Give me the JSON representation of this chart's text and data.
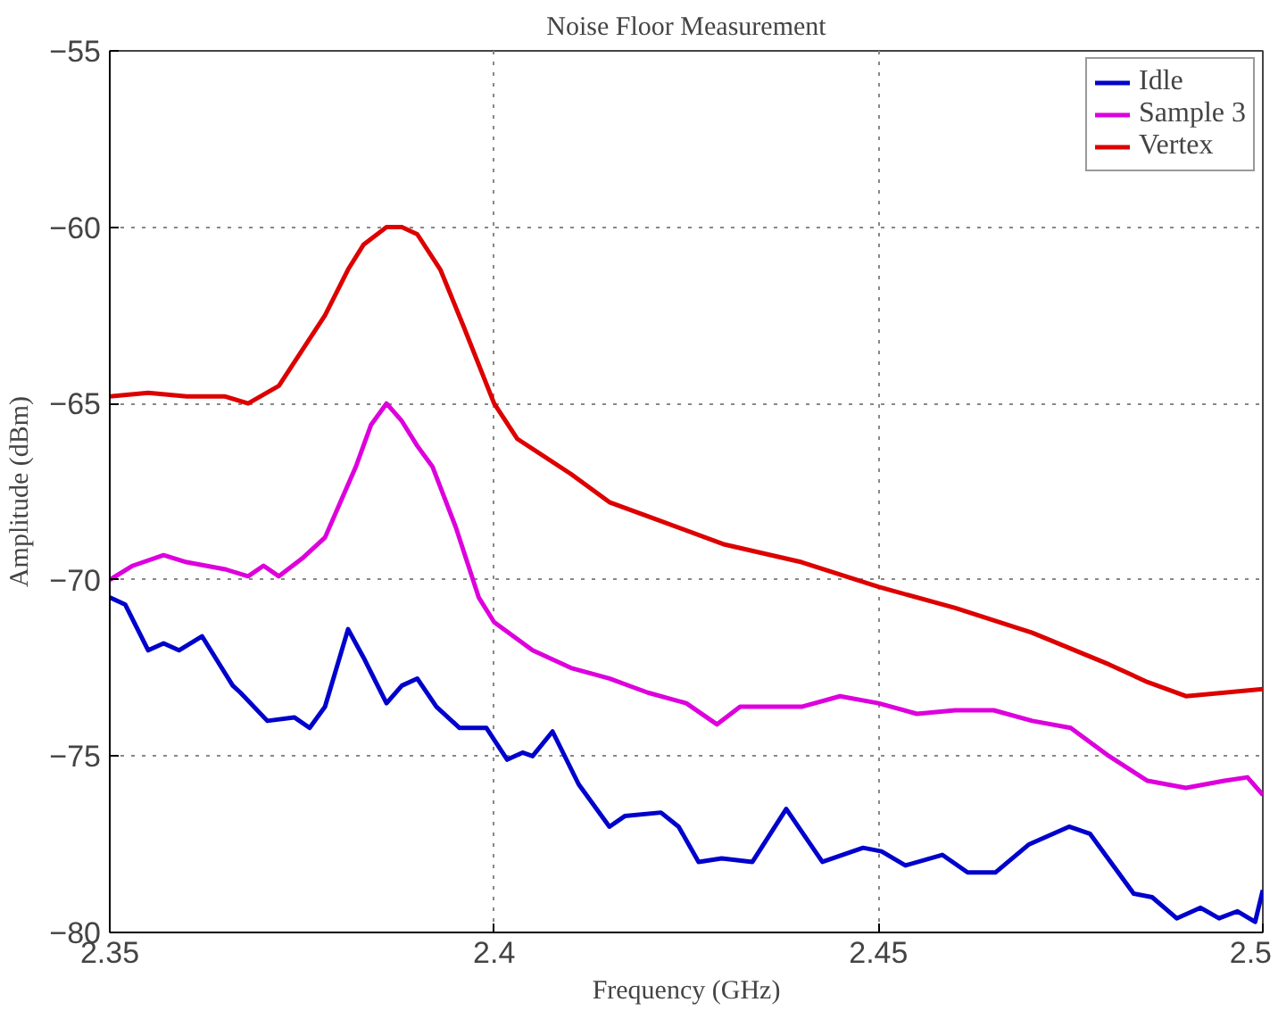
{
  "chart_data": {
    "type": "line",
    "title": "Noise Floor Measurement",
    "xlabel": "Frequency (GHz)",
    "ylabel": "Amplitude (dBm)",
    "xlim": [
      2.35,
      2.5
    ],
    "ylim": [
      -80,
      -55
    ],
    "xticks": [
      2.35,
      2.4,
      2.45,
      2.5
    ],
    "yticks": [
      -80,
      -75,
      -70,
      -65,
      -60,
      -55
    ],
    "grid": true,
    "legend": "top right",
    "marker": "none",
    "line_style": "solid",
    "series": [
      {
        "name": "Idle",
        "color": "#0000cc",
        "x": [
          2.35,
          2.352,
          2.355,
          2.357,
          2.359,
          2.362,
          2.366,
          2.367,
          2.3705,
          2.374,
          2.376,
          2.378,
          2.381,
          2.383,
          2.386,
          2.388,
          2.39,
          2.3925,
          2.3955,
          2.399,
          2.4017,
          2.4037,
          2.405,
          2.4076,
          2.411,
          2.415,
          2.417,
          2.4217,
          2.424,
          2.4266,
          2.4296,
          2.4336,
          2.438,
          2.4427,
          2.448,
          2.4504,
          2.4535,
          2.4583,
          2.4616,
          2.4652,
          2.4696,
          2.4748,
          2.4775,
          2.4832,
          2.4856,
          2.4888,
          2.4919,
          2.4943,
          2.4967,
          2.499,
          2.5
        ],
        "values": [
          -70.5,
          -70.7,
          -72.0,
          -71.8,
          -72.0,
          -71.6,
          -73.0,
          -73.2,
          -74.0,
          -73.9,
          -74.2,
          -73.6,
          -71.4,
          -72.2,
          -73.5,
          -73.0,
          -72.8,
          -73.6,
          -74.2,
          -74.2,
          -75.1,
          -74.9,
          -75.0,
          -74.3,
          -75.8,
          -77.0,
          -76.7,
          -76.6,
          -77.0,
          -78.0,
          -77.9,
          -78.0,
          -76.5,
          -78.0,
          -77.6,
          -77.7,
          -78.1,
          -77.8,
          -78.3,
          -78.3,
          -77.5,
          -77.0,
          -77.2,
          -78.9,
          -79.0,
          -79.6,
          -79.3,
          -79.6,
          -79.4,
          -79.7,
          -78.8
        ]
      },
      {
        "name": "Sample 3",
        "color": "#dd00dd",
        "x": [
          2.35,
          2.353,
          2.357,
          2.36,
          2.365,
          2.368,
          2.37,
          2.372,
          2.375,
          2.378,
          2.38,
          2.382,
          2.384,
          2.386,
          2.388,
          2.39,
          2.392,
          2.395,
          2.398,
          2.4,
          2.405,
          2.41,
          2.415,
          2.42,
          2.425,
          2.429,
          2.432,
          2.44,
          2.445,
          2.45,
          2.455,
          2.46,
          2.465,
          2.47,
          2.475,
          2.48,
          2.485,
          2.49,
          2.495,
          2.498,
          2.5
        ],
        "values": [
          -70.0,
          -69.6,
          -69.3,
          -69.5,
          -69.7,
          -69.9,
          -69.6,
          -69.9,
          -69.4,
          -68.8,
          -67.8,
          -66.8,
          -65.6,
          -65.0,
          -65.5,
          -66.2,
          -66.8,
          -68.5,
          -70.5,
          -71.2,
          -72.0,
          -72.5,
          -72.8,
          -73.2,
          -73.5,
          -74.1,
          -73.6,
          -73.6,
          -73.3,
          -73.5,
          -73.8,
          -73.7,
          -73.7,
          -74.0,
          -74.2,
          -75.0,
          -75.7,
          -75.9,
          -75.7,
          -75.6,
          -76.1
        ]
      },
      {
        "name": "Vertex",
        "color": "#dd0000",
        "x": [
          2.35,
          2.355,
          2.36,
          2.365,
          2.368,
          2.372,
          2.375,
          2.378,
          2.381,
          2.383,
          2.386,
          2.388,
          2.39,
          2.393,
          2.396,
          2.4,
          2.403,
          2.41,
          2.415,
          2.42,
          2.43,
          2.44,
          2.45,
          2.46,
          2.47,
          2.48,
          2.485,
          2.49,
          2.5
        ],
        "values": [
          -64.8,
          -64.7,
          -64.8,
          -64.8,
          -65.0,
          -64.5,
          -63.5,
          -62.5,
          -61.2,
          -60.5,
          -60.0,
          -60.0,
          -60.2,
          -61.2,
          -62.8,
          -65.0,
          -66.0,
          -67.0,
          -67.8,
          -68.2,
          -69.0,
          -69.5,
          -70.2,
          -70.8,
          -71.5,
          -72.4,
          -72.9,
          -73.3,
          -73.1
        ]
      }
    ]
  }
}
